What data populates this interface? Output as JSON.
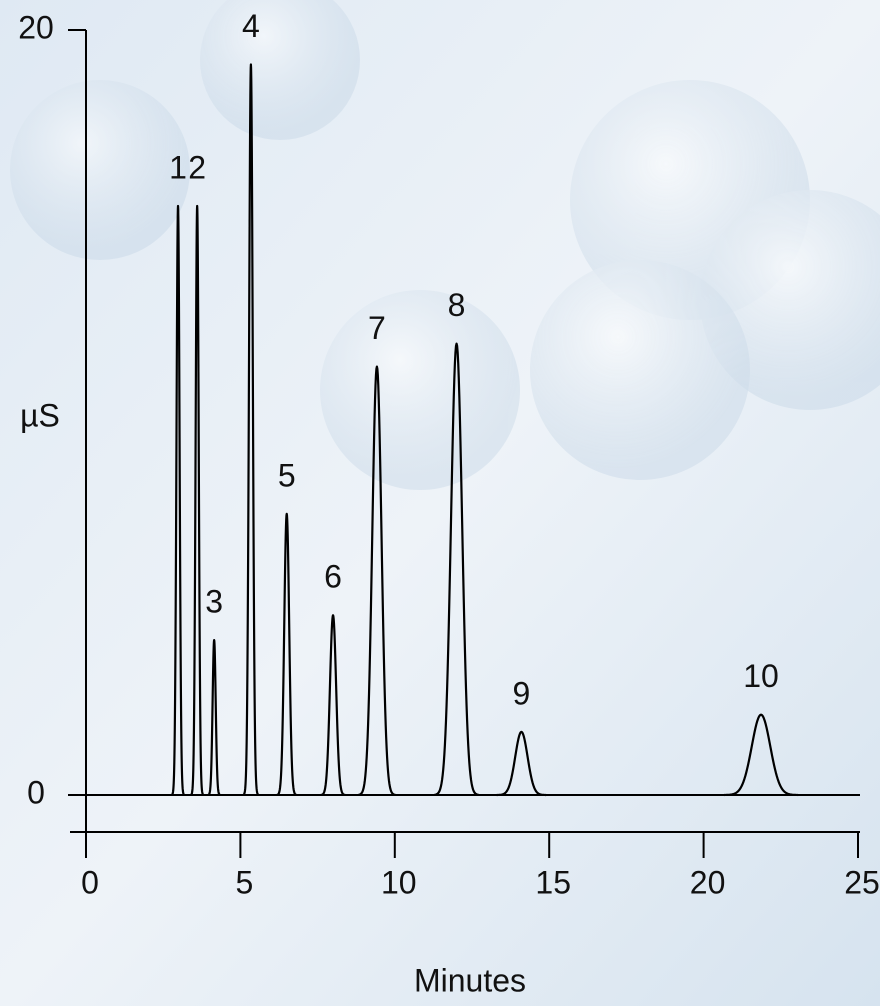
{
  "chart_data": {
    "type": "chromatogram",
    "xlabel": "Minutes",
    "ylabel": "µS",
    "categories": [
      "1",
      "2",
      "3",
      "4",
      "5",
      "6",
      "7",
      "8",
      "9",
      "10"
    ],
    "x": [
      2.98,
      3.6,
      4.15,
      5.34,
      6.5,
      8.0,
      9.42,
      12.0,
      14.1,
      21.86
    ],
    "values": [
      15.4,
      15.4,
      4.05,
      19.1,
      7.35,
      4.7,
      11.2,
      11.8,
      1.65,
      2.1
    ],
    "peak_widths": [
      0.05,
      0.05,
      0.05,
      0.06,
      0.08,
      0.1,
      0.15,
      0.18,
      0.2,
      0.3
    ],
    "color": "#000000",
    "xlim": [
      0,
      25
    ],
    "xticks": [
      0,
      5,
      10,
      15,
      20,
      25
    ],
    "ylim": [
      0,
      20
    ],
    "yticks": [
      0,
      20
    ]
  }
}
